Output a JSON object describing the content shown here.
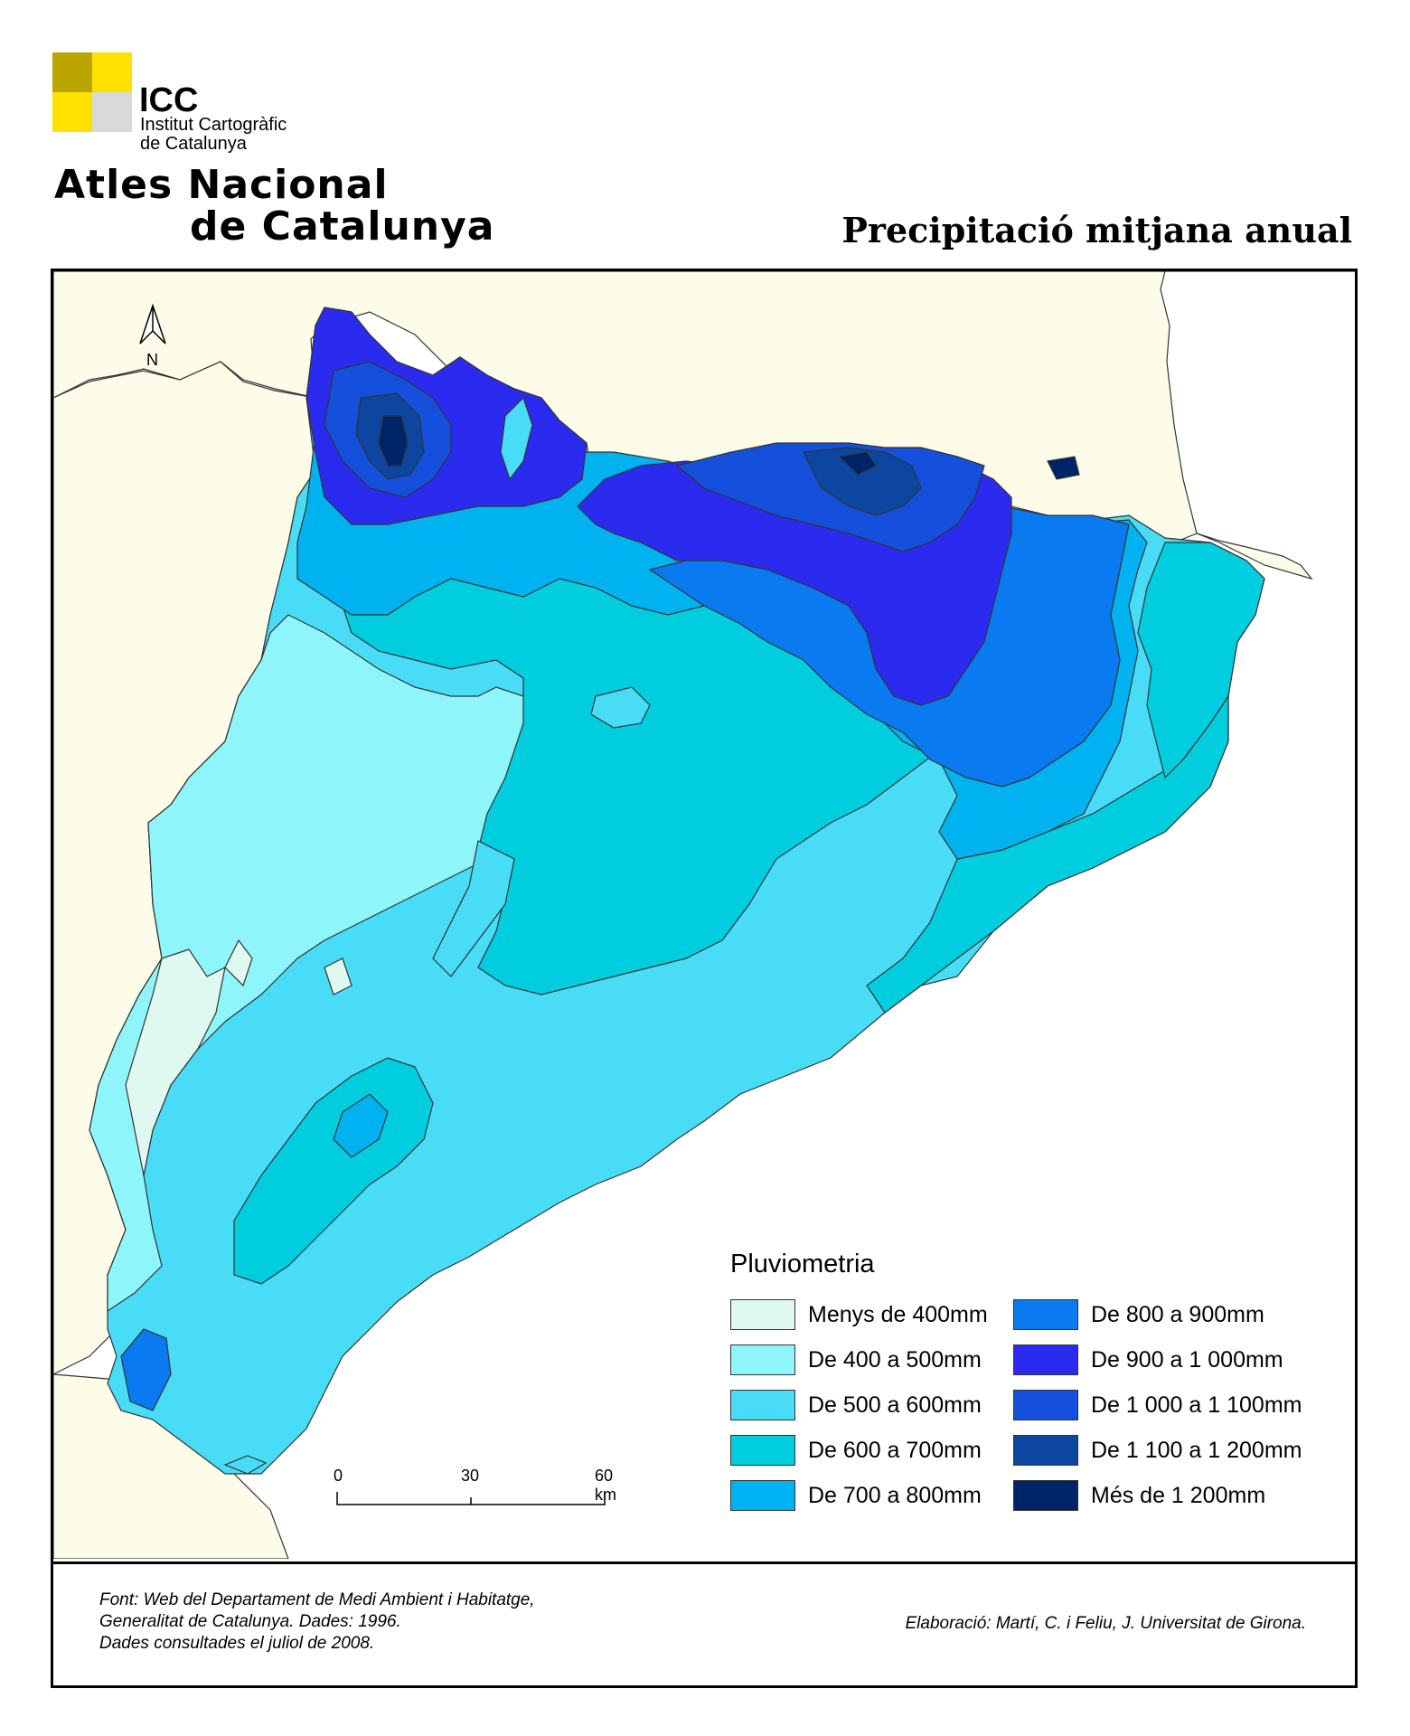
{
  "header": {
    "institution_abbr": "ICC",
    "institution_name_line1": "Institut Cartogràfic",
    "institution_name_line2": "de Catalunya",
    "atlas_line1": "Atles Nacional",
    "atlas_line2": "de Catalunya",
    "map_title": "Precipitació mitjana anual"
  },
  "north_arrow": {
    "label": "N"
  },
  "legend": {
    "title": "Pluviometria",
    "items": [
      {
        "label": "Menys de 400mm",
        "color": "#dff8f0"
      },
      {
        "label": "De 400 a 500mm",
        "color": "#8ef6fb"
      },
      {
        "label": "De 500 a 600mm",
        "color": "#48dcf7"
      },
      {
        "label": "De 600 a 700mm",
        "color": "#00cedf"
      },
      {
        "label": "De 700 a 800mm",
        "color": "#00b2f0"
      },
      {
        "label": "De 800 a 900mm",
        "color": "#0a7af0"
      },
      {
        "label": "De 900 a 1 000mm",
        "color": "#2b2bf0"
      },
      {
        "label": "De 1 000 a 1 100mm",
        "color": "#1450dc"
      },
      {
        "label": "De 1 100 a 1 200mm",
        "color": "#0c46a0"
      },
      {
        "label": "Més de 1 200mm",
        "color": "#002468"
      }
    ]
  },
  "scale_bar": {
    "ticks": [
      "0",
      "30",
      "60 km"
    ]
  },
  "credits": {
    "source_line1": "Font: Web del Departament de Medi Ambient i Habitatge,",
    "source_line2": "Generalitat de Catalunya. Dades: 1996.",
    "source_line3": "Dades consultades el juliol de 2008.",
    "author": "Elaboració: Martí, C. i  Feliu, J. Universitat de Girona."
  },
  "colors": {
    "land_outside": "#fdfce8",
    "sea": "#ffffff"
  }
}
